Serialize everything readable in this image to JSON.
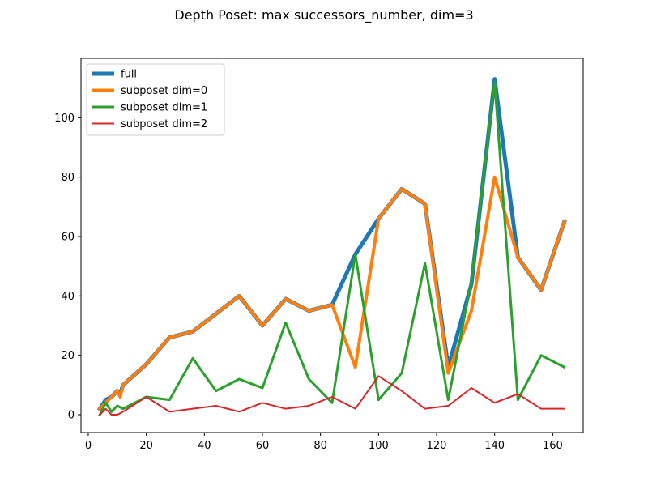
{
  "chart_data": {
    "type": "line",
    "title": "Depth Poset: max successors_number, dim=3",
    "xlabel": "",
    "ylabel": "",
    "xlim": [
      -2.5,
      170.5
    ],
    "ylim": [
      -6,
      120
    ],
    "x_ticks": [
      0,
      20,
      40,
      60,
      80,
      100,
      120,
      140,
      160
    ],
    "y_ticks": [
      0,
      20,
      40,
      60,
      80,
      100
    ],
    "grid": false,
    "legend_position": "top-left",
    "series": [
      {
        "name": "full",
        "color": "#1f77b4",
        "x": [
          4,
          6,
          8,
          10,
          11,
          12,
          20,
          28,
          36,
          44,
          52,
          60,
          68,
          76,
          84,
          92,
          100,
          108,
          116,
          124,
          132,
          140,
          148,
          156,
          164
        ],
        "y": [
          2,
          5,
          6,
          8,
          7,
          10,
          17,
          26,
          28,
          34,
          40,
          30,
          39,
          35,
          37,
          54,
          66,
          76,
          71,
          16,
          44,
          113,
          53,
          42,
          65
        ]
      },
      {
        "name": "subposet dim=0",
        "color": "#ff7f0e",
        "x": [
          4,
          6,
          8,
          10,
          11,
          12,
          20,
          28,
          36,
          44,
          52,
          60,
          68,
          76,
          84,
          92,
          100,
          108,
          116,
          124,
          132,
          140,
          148,
          156,
          164
        ],
        "y": [
          2,
          4,
          6,
          8,
          6,
          10,
          17,
          26,
          28,
          34,
          40,
          30,
          39,
          35,
          37,
          16,
          66,
          76,
          71,
          14,
          35,
          80,
          53,
          42,
          65
        ]
      },
      {
        "name": "subposet dim=1",
        "color": "#2ca02c",
        "x": [
          4,
          6,
          8,
          10,
          12,
          20,
          28,
          36,
          44,
          52,
          60,
          68,
          76,
          84,
          92,
          100,
          108,
          116,
          124,
          132,
          140,
          148,
          156,
          164
        ],
        "y": [
          0,
          4,
          1,
          3,
          2,
          6,
          5,
          19,
          8,
          12,
          9,
          31,
          12,
          4,
          54,
          5,
          14,
          51,
          5,
          45,
          112,
          5,
          20,
          16
        ]
      },
      {
        "name": "subposet dim=2",
        "color": "#d62728",
        "x": [
          4,
          6,
          8,
          10,
          12,
          20,
          28,
          36,
          44,
          52,
          60,
          68,
          76,
          84,
          92,
          100,
          108,
          116,
          124,
          132,
          140,
          148,
          156,
          164
        ],
        "y": [
          0,
          2,
          0,
          0,
          1,
          6,
          1,
          2,
          3,
          1,
          4,
          2,
          3,
          6,
          2,
          13,
          8,
          2,
          3,
          9,
          4,
          7,
          2,
          2
        ]
      }
    ]
  }
}
